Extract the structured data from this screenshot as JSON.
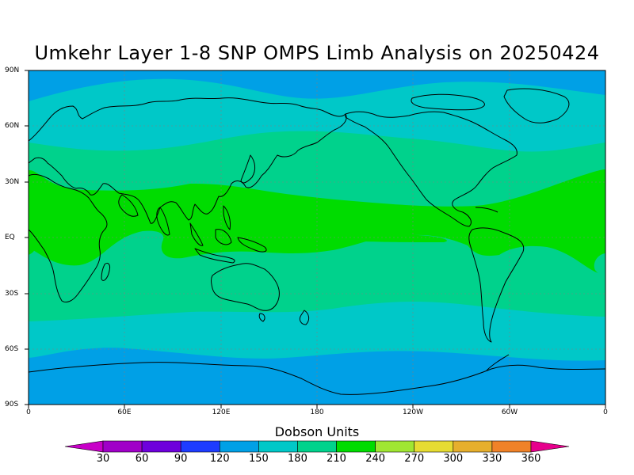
{
  "title": "Umkehr Layer 1-8 SNP OMPS Limb Analysis on 20250424",
  "y_ticks": [
    "90N",
    "60N",
    "30N",
    "EQ",
    "30S",
    "60S",
    "90S"
  ],
  "x_ticks": [
    "0",
    "60E",
    "120E",
    "180",
    "120W",
    "60W",
    "0"
  ],
  "colorbar": {
    "title": "Dobson Units",
    "labels": [
      "30",
      "60",
      "90",
      "120",
      "150",
      "180",
      "210",
      "240",
      "270",
      "300",
      "330",
      "360"
    ],
    "colors": [
      "#a000c8",
      "#6e00dc",
      "#1e3cff",
      "#00a0e6",
      "#00c8c8",
      "#00d28c",
      "#00dc00",
      "#a0e632",
      "#e6dc32",
      "#e6af2d",
      "#f08228",
      "#fa0000"
    ],
    "under_color": "#c800c8",
    "over_color": "#e6008c"
  },
  "map_colors": {
    "band_90_120": "#00a0e6",
    "band_120_150": "#00c8c8",
    "band_150_180": "#00d28c",
    "band_180_210": "#00dc00",
    "coastline": "#000000",
    "grid": "#808080"
  }
}
